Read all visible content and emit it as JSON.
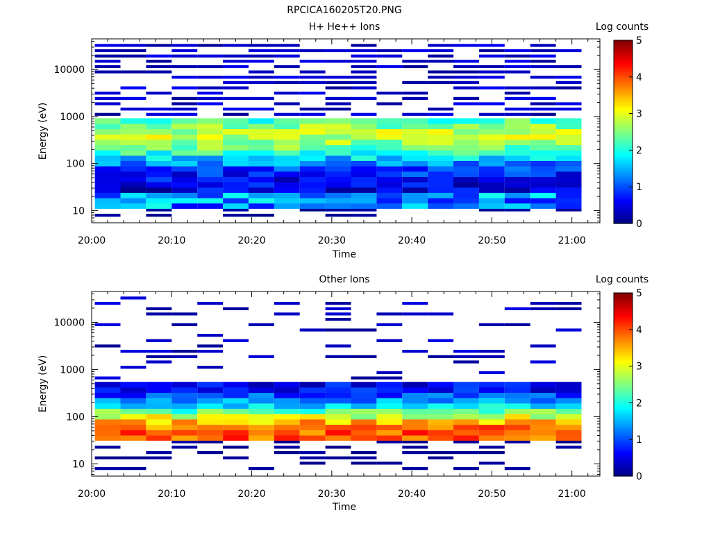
{
  "figure": {
    "title": "RPCICA160205T20.PNG"
  },
  "chart_data": [
    {
      "type": "heatmap",
      "title": "H+ He++ Ions",
      "xlabel": "Time",
      "ylabel": "Energy (eV)",
      "x_ticks": [
        "20:00",
        "20:10",
        "20:20",
        "20:30",
        "20:40",
        "20:50",
        "21:00"
      ],
      "y_ticks": [
        "10",
        "100",
        "1000",
        "10000"
      ],
      "y_scale": "log",
      "ylim": [
        5.5,
        45000
      ],
      "colorbar": {
        "label": "Log counts",
        "ticks": [
          "0",
          "1",
          "2",
          "3",
          "4",
          "5"
        ],
        "range": [
          0,
          5
        ]
      },
      "time_start_min": 2,
      "time_step_min": 3.2,
      "profile": {
        "low_band": [
          1.1,
          1.4
        ],
        "main_peak_log_e": 2.6,
        "main_peak_value": 2.4,
        "flux_edge_log_e": 2.95,
        "sparse_high_value": 0.35
      }
    },
    {
      "type": "heatmap",
      "title": "Other Ions",
      "xlabel": "Time",
      "ylabel": "Energy (eV)",
      "x_ticks": [
        "20:00",
        "20:10",
        "20:20",
        "20:30",
        "20:40",
        "20:50",
        "21:00"
      ],
      "y_ticks": [
        "10",
        "100",
        "1000",
        "10000"
      ],
      "y_scale": "log",
      "ylim": [
        5.5,
        45000
      ],
      "colorbar": {
        "label": "Log counts",
        "ticks": [
          "0",
          "1",
          "2",
          "3",
          "4",
          "5"
        ],
        "range": [
          0,
          5
        ]
      },
      "time_start_min": 2,
      "time_step_min": 3.2,
      "profile": {
        "low_band": [
          1.45,
          1.5
        ],
        "main_peak_log_e": 1.65,
        "main_peak_value": 3.6,
        "flux_edge_log_e": 2.75,
        "sparse_high_value": 0.3
      }
    }
  ]
}
